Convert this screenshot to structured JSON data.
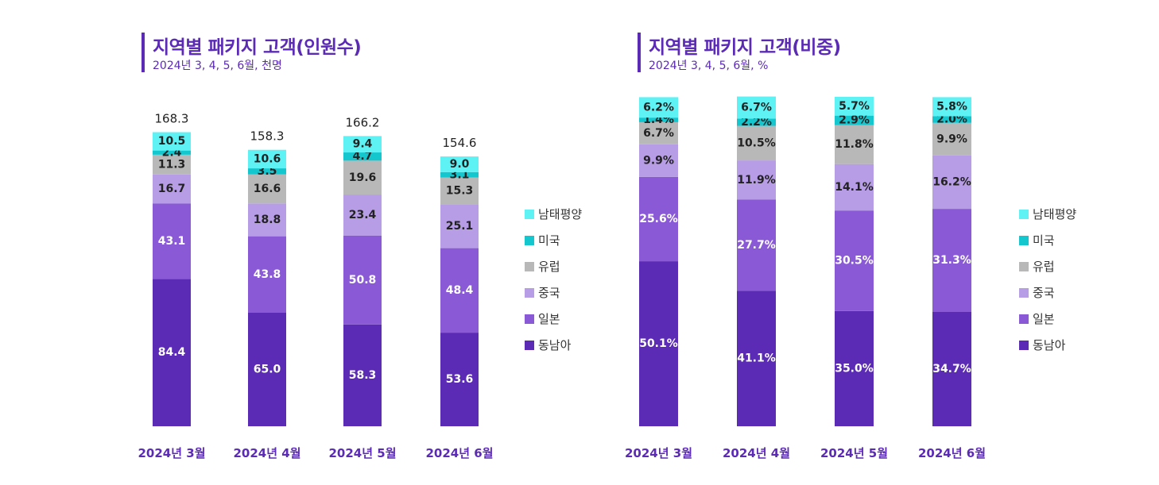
{
  "colors": {
    "accent": "#5b2bb5",
    "남태평양": "#5ef2f5",
    "미국": "#14c7cf",
    "유럽": "#b8b8b8",
    "중국": "#b79ce6",
    "일본": "#8a5ad6",
    "동남아": "#5b2bb5"
  },
  "chart_data": [
    {
      "type": "bar",
      "stacked": true,
      "title": "지역별 패키지 고객(인원수)",
      "subtitle": "2024년 3, 4, 5, 6월, 천명",
      "categories": [
        "2024년 3월",
        "2024년 4월",
        "2024년 5월",
        "2024년 6월"
      ],
      "totals": [
        "168.3",
        "158.3",
        "166.2",
        "154.6"
      ],
      "series": [
        {
          "name": "동남아",
          "values": [
            84.4,
            65.0,
            58.3,
            53.6
          ],
          "labels": [
            "84.4",
            "65.0",
            "58.3",
            "53.6"
          ]
        },
        {
          "name": "일본",
          "values": [
            43.1,
            43.8,
            50.8,
            48.4
          ],
          "labels": [
            "43.1",
            "43.8",
            "50.8",
            "48.4"
          ]
        },
        {
          "name": "중국",
          "values": [
            16.7,
            18.8,
            23.4,
            25.1
          ],
          "labels": [
            "16.7",
            "18.8",
            "23.4",
            "25.1"
          ]
        },
        {
          "name": "유럽",
          "values": [
            11.3,
            16.6,
            19.6,
            15.3
          ],
          "labels": [
            "11.3",
            "16.6",
            "19.6",
            "15.3"
          ]
        },
        {
          "name": "미국",
          "values": [
            2.4,
            3.5,
            4.7,
            3.1
          ],
          "labels": [
            "2.4",
            "3.5",
            "4.7",
            "3.1"
          ]
        },
        {
          "name": "남태평양",
          "values": [
            10.5,
            10.6,
            9.4,
            9.0
          ],
          "labels": [
            "10.5",
            "10.6",
            "9.4",
            "9.0"
          ]
        }
      ],
      "legend_order": [
        "남태평양",
        "미국",
        "유럽",
        "중국",
        "일본",
        "동남아"
      ],
      "legend_position": "right"
    },
    {
      "type": "bar",
      "stacked": true,
      "title": "지역별 패키지 고객(비중)",
      "subtitle": "2024년 3, 4, 5, 6월, %",
      "categories": [
        "2024년 3월",
        "2024년 4월",
        "2024년 5월",
        "2024년 6월"
      ],
      "series": [
        {
          "name": "동남아",
          "values": [
            50.1,
            41.1,
            35.0,
            34.7
          ],
          "labels": [
            "50.1%",
            "41.1%",
            "35.0%",
            "34.7%"
          ]
        },
        {
          "name": "일본",
          "values": [
            25.6,
            27.7,
            30.5,
            31.3
          ],
          "labels": [
            "25.6%",
            "27.7%",
            "30.5%",
            "31.3%"
          ]
        },
        {
          "name": "중국",
          "values": [
            9.9,
            11.9,
            14.1,
            16.2
          ],
          "labels": [
            "9.9%",
            "11.9%",
            "14.1%",
            "16.2%"
          ]
        },
        {
          "name": "유럽",
          "values": [
            6.7,
            10.5,
            11.8,
            9.9
          ],
          "labels": [
            "6.7%",
            "10.5%",
            "11.8%",
            "9.9%"
          ]
        },
        {
          "name": "미국",
          "values": [
            1.4,
            2.2,
            2.9,
            2.0
          ],
          "labels": [
            "1.4%",
            "2.2%",
            "2.9%",
            "2.0%"
          ]
        },
        {
          "name": "남태평양",
          "values": [
            6.2,
            6.7,
            5.7,
            5.8
          ],
          "labels": [
            "6.2%",
            "6.7%",
            "5.7%",
            "5.8%"
          ]
        }
      ],
      "legend_order": [
        "남태평양",
        "미국",
        "유럽",
        "중국",
        "일본",
        "동남아"
      ],
      "legend_position": "right"
    }
  ]
}
